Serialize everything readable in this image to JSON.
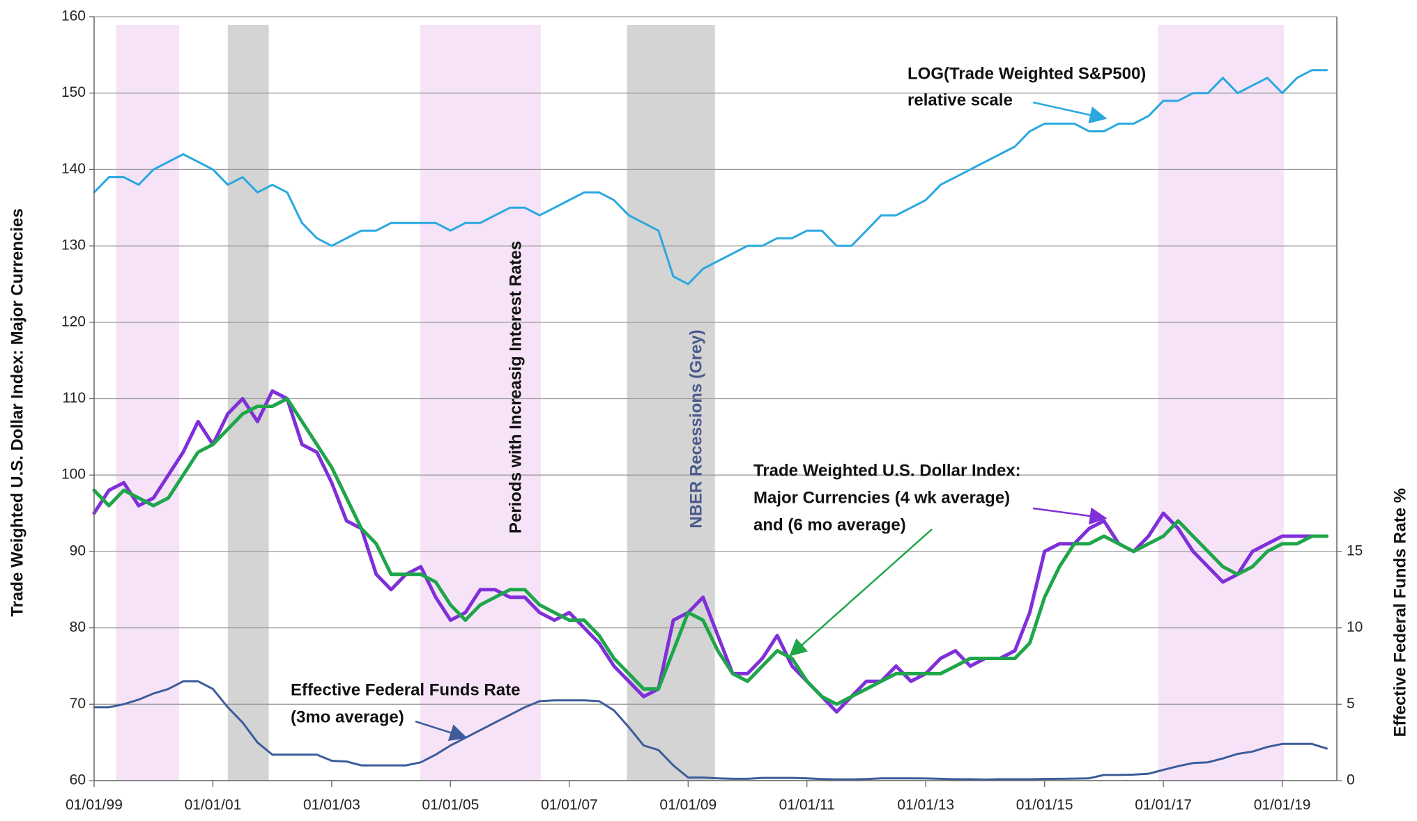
{
  "chart_data": {
    "type": "line",
    "ylabel": "Trade Weighted U.S. Dollar Index:  Major Currencies",
    "y2label": "Effective Federal Funds Rate %",
    "xlim": [
      1999,
      2019.92
    ],
    "xticks": [
      {
        "value": 1999,
        "label": "01/01/99"
      },
      {
        "value": 2001,
        "label": "01/01/01"
      },
      {
        "value": 2003,
        "label": "01/01/03"
      },
      {
        "value": 2005,
        "label": "01/01/05"
      },
      {
        "value": 2007,
        "label": "01/01/07"
      },
      {
        "value": 2009,
        "label": "01/01/09"
      },
      {
        "value": 2011,
        "label": "01/01/11"
      },
      {
        "value": 2013,
        "label": "01/01/13"
      },
      {
        "value": 2015,
        "label": "01/01/15"
      },
      {
        "value": 2017,
        "label": "01/01/17"
      },
      {
        "value": 2019,
        "label": "01/01/19"
      }
    ],
    "ylim": [
      60,
      160
    ],
    "yticks": [
      60,
      70,
      80,
      90,
      100,
      110,
      120,
      130,
      140,
      150,
      160
    ],
    "y2lim": [
      0,
      50
    ],
    "y2ticks": [
      0,
      5,
      10,
      15
    ],
    "grid": true,
    "shaded_regions": [
      {
        "x": [
          1999.37,
          2000.43
        ],
        "color": "#f6e3f8"
      },
      {
        "x": [
          2001.25,
          2001.94
        ],
        "color": "#d4d4d4"
      },
      {
        "x": [
          2004.49,
          2006.52
        ],
        "color": "#f6e3f8"
      },
      {
        "x": [
          2007.97,
          2009.45
        ],
        "color": "#d4d4d4"
      },
      {
        "x": [
          2016.91,
          2019.03
        ],
        "color": "#f6e3f8"
      }
    ],
    "x": [
      1999,
      1999.25,
      1999.5,
      1999.75,
      2000,
      2000.25,
      2000.5,
      2000.75,
      2001,
      2001.25,
      2001.5,
      2001.75,
      2002,
      2002.25,
      2002.5,
      2002.75,
      2003,
      2003.25,
      2003.5,
      2003.75,
      2004,
      2004.25,
      2004.5,
      2004.75,
      2005,
      2005.25,
      2005.5,
      2005.75,
      2006,
      2006.25,
      2006.5,
      2006.75,
      2007,
      2007.25,
      2007.5,
      2007.75,
      2008,
      2008.25,
      2008.5,
      2008.75,
      2009,
      2009.25,
      2009.5,
      2009.75,
      2010,
      2010.25,
      2010.5,
      2010.75,
      2011,
      2011.25,
      2011.5,
      2011.75,
      2012,
      2012.25,
      2012.5,
      2012.75,
      2013,
      2013.25,
      2013.5,
      2013.75,
      2014,
      2014.25,
      2014.5,
      2014.75,
      2015,
      2015.25,
      2015.5,
      2015.75,
      2016,
      2016.25,
      2016.5,
      2016.75,
      2017,
      2017.25,
      2017.5,
      2017.75,
      2018,
      2018.25,
      2018.5,
      2018.75,
      2019,
      2019.25,
      2019.5,
      2019.75
    ],
    "series": [
      {
        "color": "#29a8e0",
        "width": 3,
        "values": [
          137,
          139,
          139,
          138,
          140,
          141,
          142,
          141,
          140,
          138,
          139,
          137,
          138,
          137,
          133,
          131,
          130,
          131,
          132,
          132,
          133,
          133,
          133,
          133,
          132,
          133,
          133,
          134,
          135,
          135,
          134,
          135,
          136,
          137,
          137,
          136,
          134,
          133,
          132,
          126,
          125,
          127,
          128,
          129,
          130,
          130,
          131,
          131,
          132,
          132,
          130,
          130,
          132,
          134,
          134,
          135,
          136,
          138,
          139,
          140,
          141,
          142,
          143,
          145,
          146,
          146,
          146,
          145,
          145,
          146,
          146,
          147,
          149,
          149,
          150,
          150,
          152,
          150,
          151,
          152,
          150,
          152,
          153,
          153
        ]
      },
      {
        "color": "#7f30d8",
        "width": 5,
        "values": [
          95,
          98,
          99,
          96,
          97,
          100,
          103,
          107,
          104,
          108,
          110,
          107,
          111,
          110,
          104,
          103,
          99,
          94,
          93,
          87,
          85,
          87,
          88,
          84,
          81,
          82,
          85,
          85,
          84,
          84,
          82,
          81,
          82,
          80,
          78,
          75,
          73,
          71,
          72,
          81,
          82,
          84,
          79,
          74,
          74,
          76,
          79,
          75,
          73,
          71,
          69,
          71,
          73,
          73,
          75,
          73,
          74,
          76,
          77,
          75,
          76,
          76,
          77,
          82,
          90,
          91,
          91,
          93,
          94,
          91,
          90,
          92,
          95,
          93,
          90,
          88,
          86,
          87,
          90,
          91,
          92,
          92,
          92,
          92
        ]
      },
      {
        "color": "#1fa64a",
        "width": 5,
        "values": [
          98,
          96,
          98,
          97,
          96,
          97,
          100,
          103,
          104,
          106,
          108,
          109,
          109,
          110,
          107,
          104,
          101,
          97,
          93,
          91,
          87,
          87,
          87,
          86,
          83,
          81,
          83,
          84,
          85,
          85,
          83,
          82,
          81,
          81,
          79,
          76,
          74,
          72,
          72,
          77,
          82,
          81,
          77,
          74,
          73,
          75,
          77,
          76,
          73,
          71,
          70,
          71,
          72,
          73,
          74,
          74,
          74,
          74,
          75,
          76,
          76,
          76,
          76,
          78,
          84,
          88,
          91,
          91,
          92,
          91,
          90,
          91,
          92,
          94,
          92,
          90,
          88,
          87,
          88,
          90,
          91,
          91,
          92,
          92
        ]
      },
      {
        "color": "#3d5c99",
        "width": 3,
        "axis": "y2",
        "values": [
          4.8,
          4.8,
          5.0,
          5.3,
          5.7,
          6.0,
          6.5,
          6.5,
          6.0,
          4.8,
          3.8,
          2.5,
          1.7,
          1.7,
          1.7,
          1.7,
          1.3,
          1.25,
          1.0,
          1.0,
          1.0,
          1.0,
          1.2,
          1.7,
          2.3,
          2.8,
          3.3,
          3.8,
          4.3,
          4.8,
          5.2,
          5.25,
          5.25,
          5.25,
          5.2,
          4.6,
          3.5,
          2.3,
          2.0,
          1.0,
          0.2,
          0.2,
          0.15,
          0.12,
          0.12,
          0.18,
          0.18,
          0.18,
          0.15,
          0.1,
          0.08,
          0.08,
          0.1,
          0.15,
          0.15,
          0.15,
          0.14,
          0.12,
          0.09,
          0.09,
          0.07,
          0.09,
          0.09,
          0.09,
          0.11,
          0.12,
          0.13,
          0.15,
          0.37,
          0.37,
          0.39,
          0.45,
          0.7,
          0.95,
          1.15,
          1.2,
          1.45,
          1.75,
          1.9,
          2.2,
          2.4,
          2.4,
          2.4,
          2.1
        ]
      }
    ],
    "annotations": [
      {
        "lines": [
          "LOG(Trade Weighted S&P500)",
          "relative scale"
        ],
        "color": "#111111"
      },
      {
        "lines": [
          "Trade Weighted U.S. Dollar Index:",
          "Major Currencies (4 wk average)",
          "and (6 mo average)"
        ],
        "color": "#111111"
      },
      {
        "lines": [
          "Effective Federal Funds Rate",
          "(3mo average)"
        ],
        "color": "#111111"
      },
      {
        "lines": [
          "Periods with Increasig Interest Rates"
        ],
        "color": "#111111"
      },
      {
        "lines": [
          "NBER Recessions (Grey)"
        ],
        "color": "#4b5a8c"
      }
    ]
  }
}
